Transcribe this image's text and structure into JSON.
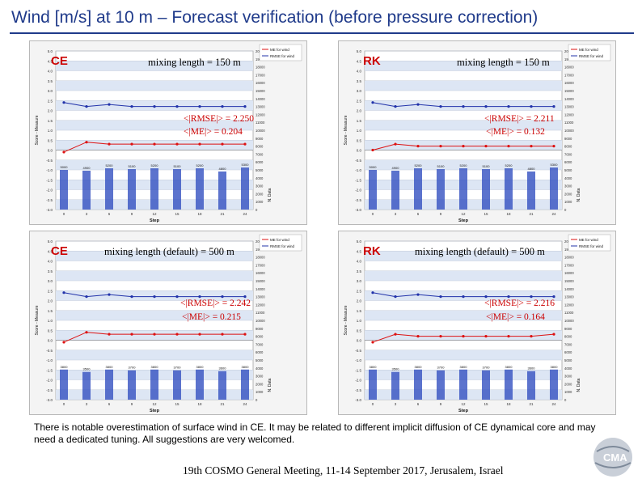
{
  "page": {
    "title": "Wind [m/s] at 10 m –  Forecast verification (before pressure correction)",
    "note": "There is notable overestimation of surface wind in CE. It may be related to different implicit diffusion of CE dynamical core and may need a dedicated tuning. All suggestions are very welcomed.",
    "footer": "19th COSMO General Meeting, 11-14 September 2017, Jerusalem, Israel",
    "logo_text": "CMA"
  },
  "panels": [
    {
      "model": "CE",
      "mixing": "mixing length = 150 m",
      "rmse": "<|RMSE|> = 2.250",
      "me": "<|ME|> = 0.204"
    },
    {
      "model": "RK",
      "mixing": "mixing length = 150 m",
      "rmse": "<|RMSE|> = 2.211",
      "me": "<|ME|> = 0.132"
    },
    {
      "model": "CE",
      "mixing": "mixing length (default) = 500 m",
      "rmse": "<|RMSE|> = 2.242",
      "me": "<|ME|> = 0.215"
    },
    {
      "model": "RK",
      "mixing": "mixing length (default) = 500 m",
      "rmse": "<|RMSE|> = 2.216",
      "me": "<|ME|> = 0.164"
    }
  ],
  "chart_data": [
    {
      "type": "line",
      "xlabel": "Step",
      "ylabel": "Score - Measure",
      "y2label": "N. Data",
      "ylim": [
        -3.0,
        5.0
      ],
      "y2lim": [
        0,
        20000
      ],
      "categories": [
        "0",
        "3",
        "6",
        "9",
        "12",
        "15",
        "18",
        "21",
        "24"
      ],
      "series": [
        {
          "name": "ME for wind",
          "color": "#dd1111",
          "values": [
            -0.1,
            0.4,
            0.3,
            0.3,
            0.3,
            0.3,
            0.3,
            0.3,
            0.3
          ]
        },
        {
          "name": "RMSE for wind",
          "color": "#2233aa",
          "values": [
            2.4,
            2.2,
            2.3,
            2.2,
            2.2,
            2.2,
            2.2,
            2.2,
            2.2
          ]
        }
      ],
      "bars": {
        "name": "N. Data",
        "values": [
          5000,
          4900,
          5200,
          5100,
          5200,
          5100,
          5200,
          4800,
          5300
        ]
      }
    },
    {
      "type": "line",
      "xlabel": "Step",
      "ylabel": "Score - Measure",
      "y2label": "N. Data",
      "ylim": [
        -3.0,
        5.0
      ],
      "y2lim": [
        0,
        20000
      ],
      "categories": [
        "0",
        "3",
        "6",
        "9",
        "12",
        "15",
        "18",
        "21",
        "24"
      ],
      "series": [
        {
          "name": "ME for wind",
          "color": "#dd1111",
          "values": [
            0.0,
            0.3,
            0.2,
            0.2,
            0.2,
            0.2,
            0.2,
            0.2,
            0.2
          ]
        },
        {
          "name": "RMSE for wind",
          "color": "#2233aa",
          "values": [
            2.4,
            2.2,
            2.3,
            2.2,
            2.2,
            2.2,
            2.2,
            2.2,
            2.2
          ]
        }
      ],
      "bars": {
        "name": "N. Data",
        "values": [
          5000,
          4900,
          5200,
          5100,
          5200,
          5100,
          5200,
          4800,
          5300
        ]
      }
    },
    {
      "type": "line",
      "xlabel": "Step",
      "ylabel": "Score - Measure",
      "y2label": "N. Data",
      "ylim": [
        -3.0,
        5.0
      ],
      "y2lim": [
        0,
        20000
      ],
      "categories": [
        "0",
        "3",
        "6",
        "9",
        "12",
        "15",
        "18",
        "21",
        "24"
      ],
      "series": [
        {
          "name": "ME for wind",
          "color": "#dd1111",
          "values": [
            -0.1,
            0.4,
            0.3,
            0.3,
            0.3,
            0.3,
            0.3,
            0.3,
            0.3
          ]
        },
        {
          "name": "RMSE for wind",
          "color": "#2233aa",
          "values": [
            2.4,
            2.2,
            2.3,
            2.2,
            2.2,
            2.2,
            2.2,
            2.2,
            2.2
          ]
        }
      ],
      "bars": {
        "name": "N. Data",
        "values": [
          3800,
          3500,
          3800,
          3700,
          3800,
          3700,
          3800,
          3600,
          3800
        ]
      }
    },
    {
      "type": "line",
      "xlabel": "Step",
      "ylabel": "Score - Measure",
      "y2label": "N. Data",
      "ylim": [
        -3.0,
        5.0
      ],
      "y2lim": [
        0,
        20000
      ],
      "categories": [
        "0",
        "3",
        "6",
        "9",
        "12",
        "15",
        "18",
        "21",
        "24"
      ],
      "series": [
        {
          "name": "ME for wind",
          "color": "#dd1111",
          "values": [
            -0.1,
            0.3,
            0.2,
            0.2,
            0.2,
            0.2,
            0.2,
            0.2,
            0.3
          ]
        },
        {
          "name": "RMSE for wind",
          "color": "#2233aa",
          "values": [
            2.4,
            2.2,
            2.3,
            2.2,
            2.2,
            2.2,
            2.2,
            2.2,
            2.2
          ]
        }
      ],
      "bars": {
        "name": "N. Data",
        "values": [
          3800,
          3500,
          3800,
          3700,
          3800,
          3700,
          3800,
          3600,
          3800
        ]
      }
    }
  ]
}
